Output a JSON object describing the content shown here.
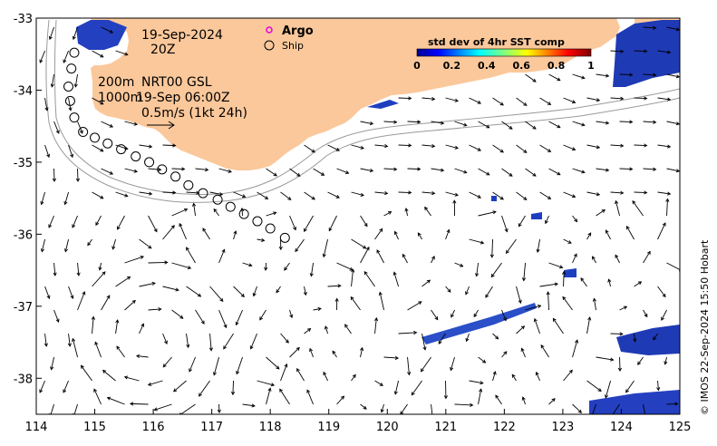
{
  "map": {
    "date_label": "19-Sep-2024",
    "time_label": "20Z",
    "depth_200": "200m",
    "depth_1000": "1000m",
    "product_label": "NRT00 GSL",
    "product_time": "19-Sep 06:00Z",
    "scale_label": "0.5m/s (1kt 24h)",
    "legend_argo": "Argo",
    "legend_ship": "Ship",
    "credit": "© IMOS 22-Sep-2024 15:50 Hobart",
    "x_ticks": [
      "114",
      "115",
      "116",
      "117",
      "118",
      "119",
      "120",
      "121",
      "122",
      "123",
      "124",
      "125"
    ],
    "y_ticks": [
      "-33",
      "-34",
      "-35",
      "-36",
      "-37",
      "-38"
    ],
    "lon_range": [
      114,
      125
    ],
    "lat_range": [
      -38.5,
      -33
    ],
    "land_color": "#fbc89b"
  },
  "colorbar": {
    "title": "std dev of 4hr SST comp",
    "ticks": [
      "0",
      "0.2",
      "0.4",
      "0.6",
      "0.8",
      "1"
    ],
    "range": [
      0,
      1
    ]
  },
  "ship_track": [
    [
      114.65,
      -33.48
    ],
    [
      114.6,
      -33.7
    ],
    [
      114.55,
      -33.95
    ],
    [
      114.58,
      -34.15
    ],
    [
      114.65,
      -34.38
    ],
    [
      114.8,
      -34.58
    ],
    [
      115.0,
      -34.66
    ],
    [
      115.22,
      -34.74
    ],
    [
      115.45,
      -34.82
    ],
    [
      115.7,
      -34.92
    ],
    [
      115.93,
      -35.0
    ],
    [
      116.15,
      -35.1
    ],
    [
      116.38,
      -35.2
    ],
    [
      116.6,
      -35.32
    ],
    [
      116.85,
      -35.43
    ],
    [
      117.1,
      -35.52
    ],
    [
      117.32,
      -35.62
    ],
    [
      117.55,
      -35.72
    ],
    [
      117.78,
      -35.82
    ],
    [
      118.0,
      -35.92
    ],
    [
      118.25,
      -36.05
    ]
  ]
}
